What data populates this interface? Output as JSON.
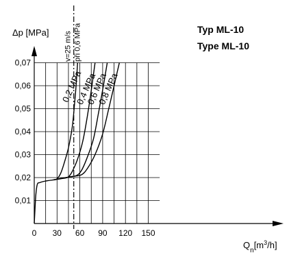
{
  "chart_data": {
    "type": "line",
    "title_lines": [
      "Typ   ML-10",
      "Type ML-10"
    ],
    "xlabel": {
      "main": "Q",
      "sub": "n",
      "unit_pre": "[m",
      "sup": "3",
      "unit_post": "/h]"
    },
    "ylabel": "Δp [MPa]",
    "xlim": [
      0,
      160
    ],
    "ylim": [
      0,
      0.07
    ],
    "x_ticks": [
      0,
      30,
      60,
      90,
      120,
      150
    ],
    "x_tick_labels": [
      "0",
      "30",
      "60",
      "90",
      "120",
      "150"
    ],
    "y_ticks": [
      0.01,
      0.02,
      0.03,
      0.04,
      0.05,
      0.06,
      0.07
    ],
    "y_tick_labels": [
      "0,01",
      "0,02",
      "0,03",
      "0,04",
      "0,05",
      "0,06",
      "0,07"
    ],
    "grid": true,
    "reference_line": {
      "x": 52,
      "label_lines": [
        "v=25 m/s",
        "při 0,6 MPa"
      ]
    },
    "common_start": [
      [
        0,
        0.0
      ],
      [
        2,
        0.012
      ],
      [
        4,
        0.017
      ],
      [
        7,
        0.0178
      ],
      [
        15,
        0.0185
      ],
      [
        25,
        0.019
      ]
    ],
    "series": [
      {
        "name": "0,2 MPa",
        "points": [
          [
            25,
            0.019
          ],
          [
            30,
            0.0195
          ],
          [
            35,
            0.022
          ],
          [
            40,
            0.027
          ],
          [
            45,
            0.033
          ],
          [
            50,
            0.042
          ],
          [
            53,
            0.052
          ],
          [
            55,
            0.06
          ],
          [
            57,
            0.07
          ]
        ]
      },
      {
        "name": "0,4 MPa",
        "points": [
          [
            25,
            0.019
          ],
          [
            35,
            0.0195
          ],
          [
            45,
            0.0203
          ],
          [
            52,
            0.024
          ],
          [
            58,
            0.029
          ],
          [
            64,
            0.036
          ],
          [
            70,
            0.047
          ],
          [
            75,
            0.058
          ],
          [
            80,
            0.07
          ]
        ]
      },
      {
        "name": "0,6 MPa",
        "points": [
          [
            25,
            0.019
          ],
          [
            45,
            0.0202
          ],
          [
            55,
            0.0208
          ],
          [
            62,
            0.023
          ],
          [
            70,
            0.029
          ],
          [
            78,
            0.037
          ],
          [
            85,
            0.049
          ],
          [
            91,
            0.06
          ],
          [
            96,
            0.07
          ]
        ]
      },
      {
        "name": "0,8 MPa",
        "points": [
          [
            25,
            0.019
          ],
          [
            50,
            0.0205
          ],
          [
            62,
            0.0212
          ],
          [
            70,
            0.024
          ],
          [
            80,
            0.03
          ],
          [
            90,
            0.039
          ],
          [
            98,
            0.05
          ],
          [
            105,
            0.06
          ],
          [
            112,
            0.07
          ]
        ]
      }
    ]
  }
}
